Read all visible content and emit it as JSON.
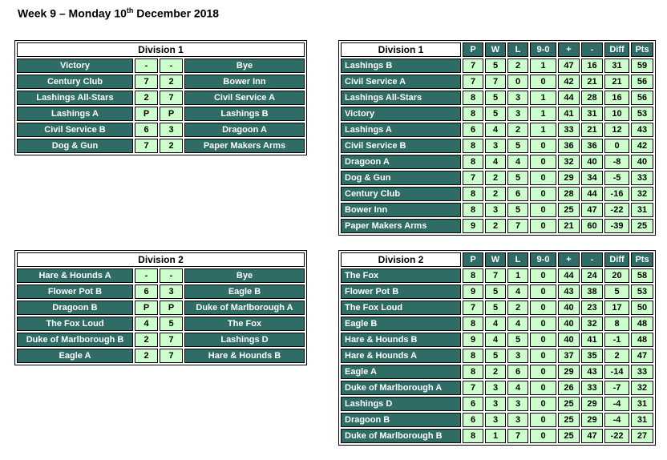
{
  "title": {
    "prefix": "Week 9 – Monday 10",
    "ordinal": "th",
    "suffix": " December 2018"
  },
  "colors": {
    "team_cell_bg": "#2F6C66",
    "value_cell_bg": "#CCFFCC",
    "title_cell_bg": "#FFFFFF",
    "team_text": "#FFFFFF",
    "value_text": "#000000",
    "border": "#000000"
  },
  "fixtures": [
    {
      "title": "Division 1",
      "rows": [
        {
          "home": "Victory",
          "home_score": "-",
          "away_score": "-",
          "away": "Bye"
        },
        {
          "home": "Century Club",
          "home_score": "7",
          "away_score": "2",
          "away": "Bower Inn"
        },
        {
          "home": "Lashings All-Stars",
          "home_score": "2",
          "away_score": "7",
          "away": "Civil Service A"
        },
        {
          "home": "Lashings A",
          "home_score": "P",
          "away_score": "P",
          "away": "Lashings B"
        },
        {
          "home": "Civil Service B",
          "home_score": "6",
          "away_score": "3",
          "away": "Dragoon A"
        },
        {
          "home": "Dog & Gun",
          "home_score": "7",
          "away_score": "2",
          "away": "Paper Makers Arms"
        }
      ]
    },
    {
      "title": "Division 2",
      "rows": [
        {
          "home": "Hare & Hounds A",
          "home_score": "-",
          "away_score": "-",
          "away": "Bye"
        },
        {
          "home": "Flower Pot B",
          "home_score": "6",
          "away_score": "3",
          "away": "Eagle B"
        },
        {
          "home": "Dragoon B",
          "home_score": "P",
          "away_score": "P",
          "away": "Duke of Marlborough A"
        },
        {
          "home": "The Fox Loud",
          "home_score": "4",
          "away_score": "5",
          "away": "The Fox"
        },
        {
          "home": "Duke of Marlborough B",
          "home_score": "2",
          "away_score": "7",
          "away": "Lashings D"
        },
        {
          "home": "Eagle A",
          "home_score": "2",
          "away_score": "7",
          "away": "Hare & Hounds B"
        }
      ]
    }
  ],
  "standings": [
    {
      "title": "Division 1",
      "columns": [
        "P",
        "W",
        "L",
        "9-0",
        "+",
        "-",
        "Diff",
        "Pts"
      ],
      "rows": [
        {
          "team": "Lashings B",
          "values": [
            7,
            5,
            2,
            1,
            47,
            16,
            31,
            59
          ]
        },
        {
          "team": "Civil Service A",
          "values": [
            7,
            7,
            0,
            0,
            42,
            21,
            21,
            56
          ]
        },
        {
          "team": "Lashings All-Stars",
          "values": [
            8,
            5,
            3,
            1,
            44,
            28,
            16,
            56
          ]
        },
        {
          "team": "Victory",
          "values": [
            8,
            5,
            3,
            1,
            41,
            31,
            10,
            53
          ]
        },
        {
          "team": "Lashings A",
          "values": [
            6,
            4,
            2,
            1,
            33,
            21,
            12,
            43
          ]
        },
        {
          "team": "Civil Service B",
          "values": [
            8,
            3,
            5,
            0,
            36,
            36,
            0,
            42
          ]
        },
        {
          "team": "Dragoon A",
          "values": [
            8,
            4,
            4,
            0,
            32,
            40,
            -8,
            40
          ]
        },
        {
          "team": "Dog & Gun",
          "values": [
            7,
            2,
            5,
            0,
            29,
            34,
            -5,
            33
          ]
        },
        {
          "team": "Century Club",
          "values": [
            8,
            2,
            6,
            0,
            28,
            44,
            -16,
            32
          ]
        },
        {
          "team": "Bower Inn",
          "values": [
            8,
            3,
            5,
            0,
            25,
            47,
            -22,
            31
          ]
        },
        {
          "team": "Paper Makers Arms",
          "values": [
            9,
            2,
            7,
            0,
            21,
            60,
            -39,
            25
          ]
        }
      ]
    },
    {
      "title": "Division 2",
      "columns": [
        "P",
        "W",
        "L",
        "9-0",
        "+",
        "-",
        "Diff",
        "Pts"
      ],
      "rows": [
        {
          "team": "The Fox",
          "values": [
            8,
            7,
            1,
            0,
            44,
            24,
            20,
            58
          ]
        },
        {
          "team": "Flower Pot B",
          "values": [
            9,
            5,
            4,
            0,
            43,
            38,
            5,
            53
          ]
        },
        {
          "team": "The Fox Loud",
          "values": [
            7,
            5,
            2,
            0,
            40,
            23,
            17,
            50
          ]
        },
        {
          "team": "Eagle B",
          "values": [
            8,
            4,
            4,
            0,
            40,
            32,
            8,
            48
          ]
        },
        {
          "team": "Hare & Hounds B",
          "values": [
            9,
            4,
            5,
            0,
            40,
            41,
            -1,
            48
          ]
        },
        {
          "team": "Hare & Hounds A",
          "values": [
            8,
            5,
            3,
            0,
            37,
            35,
            2,
            47
          ]
        },
        {
          "team": "Eagle A",
          "values": [
            8,
            2,
            6,
            0,
            29,
            43,
            -14,
            33
          ]
        },
        {
          "team": "Duke of Marlborough A",
          "values": [
            7,
            3,
            4,
            0,
            26,
            33,
            -7,
            32
          ]
        },
        {
          "team": "Lashings D",
          "values": [
            6,
            3,
            3,
            0,
            25,
            29,
            -4,
            31
          ]
        },
        {
          "team": "Dragoon B",
          "values": [
            6,
            3,
            3,
            0,
            25,
            29,
            -4,
            31
          ]
        },
        {
          "team": "Duke of Marlborough B",
          "values": [
            8,
            1,
            7,
            0,
            25,
            47,
            -22,
            27
          ]
        }
      ]
    }
  ]
}
